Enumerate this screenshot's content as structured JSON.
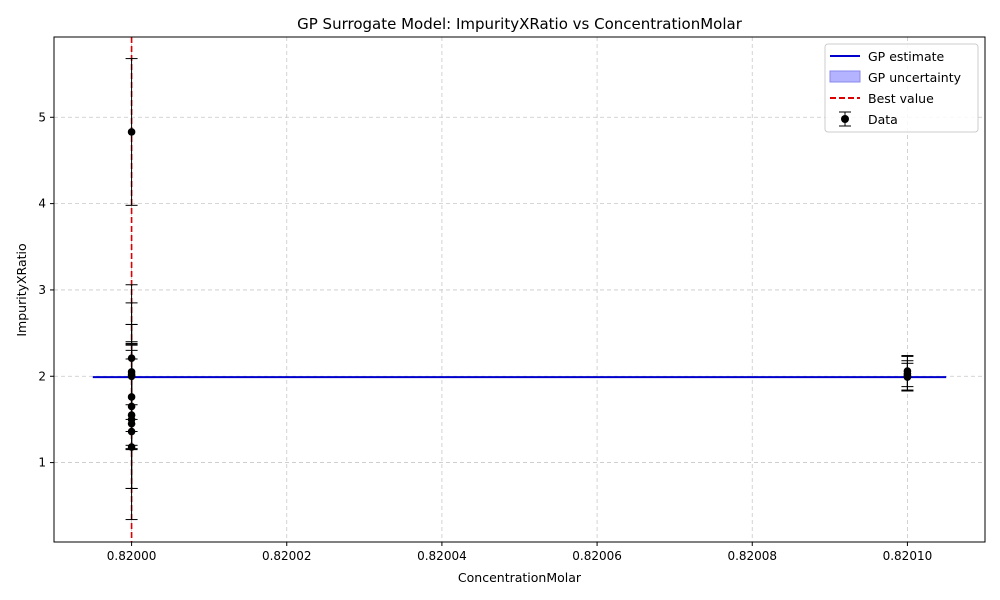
{
  "chart_data": {
    "type": "scatter",
    "title": "GP Surrogate Model: ImpurityXRatio vs ConcentrationMolar",
    "xlabel": "ConcentrationMolar",
    "ylabel": "ImpurityXRatio",
    "xlim": [
      0.81999,
      0.82011
    ],
    "ylim": [
      0.08,
      5.93
    ],
    "xticks": [
      0.82,
      0.82002,
      0.82004,
      0.82006,
      0.82008,
      0.8201
    ],
    "xtick_labels": [
      "0.82000",
      "0.82002",
      "0.82004",
      "0.82006",
      "0.82008",
      "0.82010"
    ],
    "yticks": [
      1,
      2,
      3,
      4,
      5
    ],
    "ytick_labels": [
      "1",
      "2",
      "3",
      "4",
      "5"
    ],
    "grid": true,
    "legend_position": "top-right",
    "legend": {
      "gp_estimate": "GP estimate",
      "gp_uncertainty": "GP uncertainty",
      "best_value": "Best value",
      "data": "Data"
    },
    "colors": {
      "gp_estimate": "#0000cc",
      "gp_uncertainty": "#b3b3ff",
      "best_value": "#dd0000",
      "data": "#000000",
      "grid": "#c8c8c8"
    },
    "gp_estimate": {
      "x": [
        0.819995,
        0.820105
      ],
      "y": [
        1.99,
        1.99
      ]
    },
    "best_value_x": 0.82,
    "data_points": [
      {
        "x": 0.82,
        "y": 4.83,
        "err": 0.85
      },
      {
        "x": 0.82,
        "y": 2.21,
        "err": 0.85
      },
      {
        "x": 0.82,
        "y": 2.05,
        "err": 0.55
      },
      {
        "x": 0.82,
        "y": 2.02,
        "err": 0.35
      },
      {
        "x": 0.82,
        "y": 2.0,
        "err": 0.85
      },
      {
        "x": 0.82,
        "y": 1.76,
        "err": 0.6
      },
      {
        "x": 0.82,
        "y": 1.65,
        "err": 0.95
      },
      {
        "x": 0.82,
        "y": 1.55,
        "err": 0.85
      },
      {
        "x": 0.82,
        "y": 1.5,
        "err": 0.8
      },
      {
        "x": 0.82,
        "y": 1.45,
        "err": 0.75
      },
      {
        "x": 0.82,
        "y": 1.36,
        "err": 1.02
      },
      {
        "x": 0.82,
        "y": 1.18,
        "err": 0.02
      },
      {
        "x": 0.8201,
        "y": 2.06,
        "err": 0.18
      },
      {
        "x": 0.8201,
        "y": 2.03,
        "err": 0.2
      },
      {
        "x": 0.8201,
        "y": 2.01,
        "err": 0.17
      },
      {
        "x": 0.8201,
        "y": 1.99,
        "err": 0.16
      }
    ]
  }
}
